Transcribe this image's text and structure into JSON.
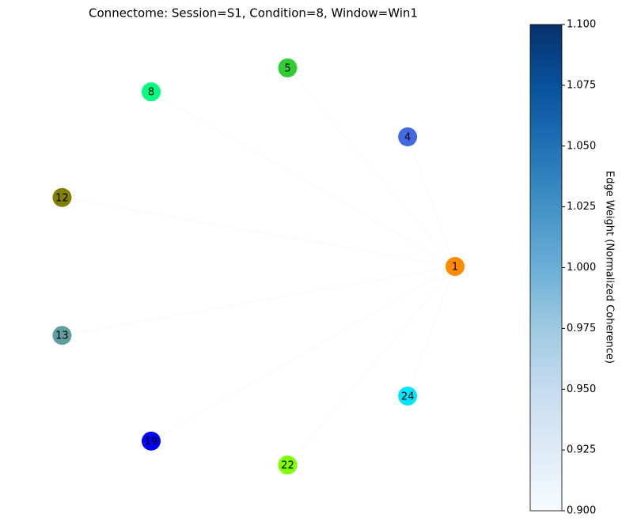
{
  "chart_data": {
    "type": "network",
    "title": "Connectome: Session=S1, Condition=8, Window=Win1",
    "nodes": [
      {
        "label": "1",
        "color": "#ff8c00"
      },
      {
        "label": "4",
        "color": "#4169e1"
      },
      {
        "label": "5",
        "color": "#32cd32"
      },
      {
        "label": "8",
        "color": "#00ff7f"
      },
      {
        "label": "12",
        "color": "#808000"
      },
      {
        "label": "13",
        "color": "#5f9ea0"
      },
      {
        "label": "19",
        "color": "#0000ff"
      },
      {
        "label": "22",
        "color": "#7fff00"
      },
      {
        "label": "24",
        "color": "#00e5ff"
      }
    ],
    "edges": [
      {
        "source": 0,
        "target": 1,
        "weight": 0.9
      },
      {
        "source": 0,
        "target": 2,
        "weight": 0.9
      },
      {
        "source": 0,
        "target": 3,
        "weight": 0.9
      },
      {
        "source": 0,
        "target": 4,
        "weight": 0.9
      },
      {
        "source": 0,
        "target": 5,
        "weight": 0.9
      },
      {
        "source": 0,
        "target": 6,
        "weight": 0.9
      },
      {
        "source": 0,
        "target": 7,
        "weight": 0.9
      },
      {
        "source": 0,
        "target": 8,
        "weight": 0.9
      }
    ],
    "colorbar_label": "Edge Weight (Normalized Coherence)",
    "clim": [
      0.9,
      1.1
    ],
    "colormap": [
      "#f7fbff",
      "#deebf7",
      "#c6dbef",
      "#9ecae1",
      "#6baed6",
      "#4292c6",
      "#2171b5",
      "#08519c",
      "#08306b"
    ],
    "cticks": [
      {
        "value": 0.9,
        "label": "0.900"
      },
      {
        "value": 0.925,
        "label": "0.925"
      },
      {
        "value": 0.95,
        "label": "0.950"
      },
      {
        "value": 0.975,
        "label": "0.975"
      },
      {
        "value": 1.0,
        "label": "1.000"
      },
      {
        "value": 1.025,
        "label": "1.025"
      },
      {
        "value": 1.05,
        "label": "1.050"
      },
      {
        "value": 1.075,
        "label": "1.075"
      },
      {
        "value": 1.1,
        "label": "1.100"
      }
    ]
  }
}
